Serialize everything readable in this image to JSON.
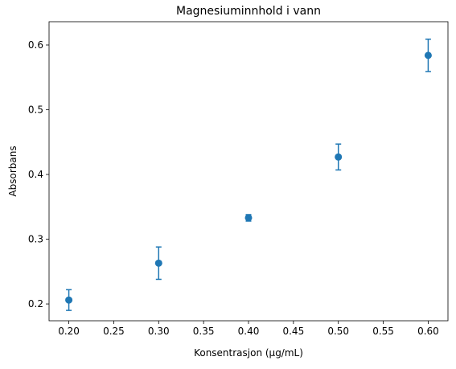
{
  "chart_data": {
    "type": "errorbar",
    "title": "Magnesiuminnhold i vann",
    "xlabel": "Konsentrasjon (μg/mL)",
    "ylabel": "Absorbans",
    "series": [
      {
        "color": "#1f77b4",
        "x": [
          0.2,
          0.3,
          0.4,
          0.5,
          0.6
        ],
        "values": [
          0.206,
          0.263,
          0.333,
          0.427,
          0.584
        ],
        "errors": [
          0.016,
          0.025,
          0.005,
          0.02,
          0.025
        ]
      }
    ],
    "xlim": [
      0.178,
      0.622
    ],
    "ylim": [
      0.174,
      0.636
    ],
    "xticks": [
      {
        "value": 0.2,
        "label": "0.20"
      },
      {
        "value": 0.25,
        "label": "0.25"
      },
      {
        "value": 0.3,
        "label": "0.30"
      },
      {
        "value": 0.35,
        "label": "0.35"
      },
      {
        "value": 0.4,
        "label": "0.40"
      },
      {
        "value": 0.45,
        "label": "0.45"
      },
      {
        "value": 0.5,
        "label": "0.50"
      },
      {
        "value": 0.55,
        "label": "0.55"
      },
      {
        "value": 0.6,
        "label": "0.60"
      }
    ],
    "yticks": [
      0.2,
      0.3,
      0.4,
      0.5,
      0.6
    ],
    "grid": false
  }
}
